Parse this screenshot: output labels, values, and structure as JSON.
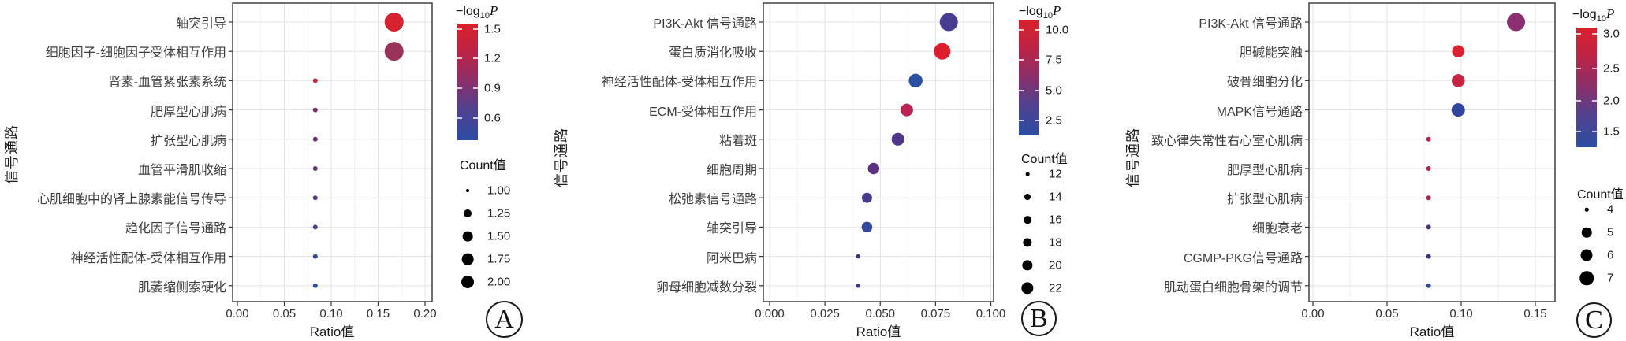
{
  "figure": {
    "x_axis_label": "Ratio值",
    "y_axis_label": "信号通路",
    "color_legend_title": {
      "prefix": "−log",
      "base": "10",
      "symbol": "P"
    },
    "count_legend_title": "Count值"
  },
  "chart_data": [
    {
      "type": "scatter",
      "panel_label": "A",
      "xlabel": "Ratio值",
      "ylabel": "信号通路",
      "x_tick_labels": [
        "0.00",
        "0.05",
        "0.10",
        "0.15",
        "0.20"
      ],
      "x_tick_values": [
        0,
        0.05,
        0.1,
        0.15,
        0.2
      ],
      "xlim": [
        -0.005,
        0.208
      ],
      "grid": true,
      "legend_position": "right",
      "color_legend_ticks": [
        "1.5",
        "1.2",
        "0.9",
        "0.6"
      ],
      "count_legend_items": [
        "1.00",
        "1.25",
        "1.50",
        "1.75",
        "2.00"
      ],
      "points": [
        {
          "pathway": "轴突引导",
          "ratio": 0.167,
          "count": 2.0,
          "neg_log10_p": 1.5,
          "color": "#d7232f"
        },
        {
          "pathway": "细胞因子-细胞因子受体相互作用",
          "ratio": 0.167,
          "count": 2.0,
          "neg_log10_p": 1.0,
          "color": "#99335a"
        },
        {
          "pathway": "肾素-血管紧张素系统",
          "ratio": 0.083,
          "count": 1.0,
          "neg_log10_p": 1.35,
          "color": "#c22739"
        },
        {
          "pathway": "肥厚型心肌病",
          "ratio": 0.083,
          "count": 1.0,
          "neg_log10_p": 0.9,
          "color": "#722f66"
        },
        {
          "pathway": "扩张型心肌病",
          "ratio": 0.083,
          "count": 1.0,
          "neg_log10_p": 0.87,
          "color": "#6d3069"
        },
        {
          "pathway": "血管平滑肌收缩",
          "ratio": 0.083,
          "count": 1.0,
          "neg_log10_p": 0.8,
          "color": "#5f3375"
        },
        {
          "pathway": "心肌细胞中的肾上腺素能信号传导",
          "ratio": 0.083,
          "count": 1.0,
          "neg_log10_p": 0.72,
          "color": "#523a82"
        },
        {
          "pathway": "趋化因子信号通路",
          "ratio": 0.083,
          "count": 1.0,
          "neg_log10_p": 0.63,
          "color": "#463f8d"
        },
        {
          "pathway": "神经活性配体-受体相互作用",
          "ratio": 0.083,
          "count": 1.0,
          "neg_log10_p": 0.5,
          "color": "#32479b"
        },
        {
          "pathway": "肌萎缩侧索硬化",
          "ratio": 0.083,
          "count": 1.0,
          "neg_log10_p": 0.46,
          "color": "#2c4ba1"
        }
      ]
    },
    {
      "type": "scatter",
      "panel_label": "B",
      "xlabel": "Ratio值",
      "ylabel": "信号通路",
      "x_tick_labels": [
        "0.000",
        "0.025",
        "0.050",
        "0.075",
        "0.100"
      ],
      "x_tick_values": [
        0,
        0.025,
        0.05,
        0.075,
        0.1
      ],
      "xlim": [
        -0.003,
        0.101
      ],
      "grid": true,
      "legend_position": "right",
      "color_legend_ticks": [
        "10.0",
        "7.5",
        "5.0",
        "2.5"
      ],
      "count_legend_items": [
        "12",
        "14",
        "16",
        "18",
        "20",
        "22"
      ],
      "points": [
        {
          "pathway": "PI3K-Akt 信号通路",
          "ratio": 0.081,
          "count": 22,
          "neg_log10_p": 3.5,
          "color": "#473e91"
        },
        {
          "pathway": "蛋白质消化吸收",
          "ratio": 0.078,
          "count": 20,
          "neg_log10_p": 10.3,
          "color": "#dd1f2d"
        },
        {
          "pathway": "神经活性配体-受体相互作用",
          "ratio": 0.066,
          "count": 18,
          "neg_log10_p": 1.8,
          "color": "#2b4fa3"
        },
        {
          "pathway": "ECM-受体相互作用",
          "ratio": 0.062,
          "count": 16,
          "neg_log10_p": 8.2,
          "color": "#ba2450"
        },
        {
          "pathway": "粘着斑",
          "ratio": 0.058,
          "count": 16,
          "neg_log10_p": 3.9,
          "color": "#4d3589"
        },
        {
          "pathway": "细胞周期",
          "ratio": 0.047,
          "count": 14,
          "neg_log10_p": 4.7,
          "color": "#5c3181"
        },
        {
          "pathway": "松弛素信号通路",
          "ratio": 0.044,
          "count": 13,
          "neg_log10_p": 3.2,
          "color": "#453a8c"
        },
        {
          "pathway": "轴突引导",
          "ratio": 0.044,
          "count": 13,
          "neg_log10_p": 2.3,
          "color": "#32479d"
        },
        {
          "pathway": "阿米巴病",
          "ratio": 0.04,
          "count": 12,
          "neg_log10_p": 3.3,
          "color": "#452d7a"
        },
        {
          "pathway": "卵母细胞减数分裂",
          "ratio": 0.04,
          "count": 12,
          "neg_log10_p": 2.9,
          "color": "#3b3b8e"
        }
      ]
    },
    {
      "type": "scatter",
      "panel_label": "C",
      "xlabel": "Ratio值",
      "ylabel": "信号通路",
      "x_tick_labels": [
        "0.00",
        "0.05",
        "0.10",
        "0.15"
      ],
      "x_tick_values": [
        0,
        0.05,
        0.1,
        0.15
      ],
      "xlim": [
        -0.003,
        0.163
      ],
      "grid": true,
      "legend_position": "right",
      "color_legend_ticks": [
        "3.0",
        "2.5",
        "2.0",
        "1.5"
      ],
      "count_legend_items": [
        "4",
        "5",
        "6",
        "7"
      ],
      "points": [
        {
          "pathway": "PI3K-Akt 信号通路",
          "ratio": 0.137,
          "count": 7,
          "neg_log10_p": 2.3,
          "color": "#8c2f72"
        },
        {
          "pathway": "胆碱能突触",
          "ratio": 0.098,
          "count": 5,
          "neg_log10_p": 3.1,
          "color": "#dd2133"
        },
        {
          "pathway": "破骨细胞分化",
          "ratio": 0.098,
          "count": 6,
          "neg_log10_p": 2.85,
          "color": "#c62441"
        },
        {
          "pathway": "MAPK信号通路",
          "ratio": 0.098,
          "count": 6,
          "neg_log10_p": 1.45,
          "color": "#32459e"
        },
        {
          "pathway": "致心律失常性右心室心肌病",
          "ratio": 0.078,
          "count": 4,
          "neg_log10_p": 2.75,
          "color": "#b92447"
        },
        {
          "pathway": "肥厚型心肌病",
          "ratio": 0.078,
          "count": 4,
          "neg_log10_p": 2.7,
          "color": "#b32349"
        },
        {
          "pathway": "扩张型心肌病",
          "ratio": 0.078,
          "count": 4,
          "neg_log10_p": 2.6,
          "color": "#ab254f"
        },
        {
          "pathway": "细胞衰老",
          "ratio": 0.078,
          "count": 4,
          "neg_log10_p": 1.75,
          "color": "#4b3277"
        },
        {
          "pathway": "CGMP-PKG信号通路",
          "ratio": 0.078,
          "count": 4,
          "neg_log10_p": 1.6,
          "color": "#3f3386"
        },
        {
          "pathway": "肌动蛋白细胞骨架的调节",
          "ratio": 0.078,
          "count": 4,
          "neg_log10_p": 1.35,
          "color": "#2c4a9d"
        }
      ]
    }
  ]
}
